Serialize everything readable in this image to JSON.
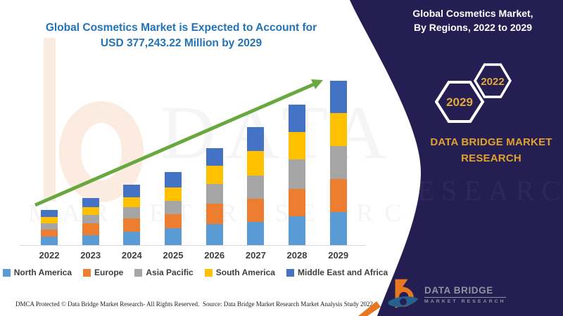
{
  "header": {
    "title_line1": "Global Cosmetics Market is Expected to Account for",
    "title_line2": "USD 377,243.22 Million by 2029",
    "title_color": "#2273B8"
  },
  "chart_data": {
    "type": "bar",
    "stacked": true,
    "title": "Global Cosmetics Market is Expected to Account for USD 377,243.22 Million by 2029",
    "categories": [
      "2022",
      "2023",
      "2024",
      "2025",
      "2026",
      "2027",
      "2028",
      "2029"
    ],
    "series": [
      {
        "name": "North America",
        "color": "#5B9BD5",
        "values": [
          12,
          14,
          19,
          24,
          30,
          33,
          41,
          47
        ]
      },
      {
        "name": "Europe",
        "color": "#ED7D31",
        "values": [
          10,
          17,
          19,
          20,
          29,
          33,
          39,
          47
        ]
      },
      {
        "name": "Asia Pacific",
        "color": "#A5A5A5",
        "values": [
          9,
          12,
          16,
          19,
          28,
          33,
          42,
          47
        ]
      },
      {
        "name": "South America",
        "color": "#FFC000",
        "values": [
          9,
          11,
          14,
          19,
          26,
          35,
          39,
          47
        ]
      },
      {
        "name": "Middle East and Africa",
        "color": "#4472C4",
        "values": [
          10,
          13,
          18,
          22,
          25,
          34,
          39,
          46
        ]
      }
    ],
    "stack_order_bottom_to_top": [
      "North America",
      "Europe",
      "Asia Pacific",
      "South America",
      "Middle East and Africa"
    ],
    "bar_totals": [
      50,
      67,
      86,
      104,
      138,
      168,
      200,
      234
    ],
    "units": "relative bar height (no y-axis scale shown on chart)",
    "yaxis_labeled": false,
    "gridlines": false,
    "legend_position": "bottom",
    "trend_arrow": {
      "present": true,
      "color": "#69A83F",
      "direction": "up-right"
    }
  },
  "footer": {
    "left": "DMCA Protected © Data Bridge Market Research- All Rights Reserved.",
    "source": "Source: Data Bridge Market Research Market Analysis Study 2022"
  },
  "panel": {
    "bg_color": "#251E52",
    "gold_color": "#DFA32B",
    "title_line1": "Global Cosmetics Market,",
    "title_line2": "By Regions, 2022 to 2029",
    "hexagons": {
      "large_year": "2029",
      "small_year": "2022"
    },
    "brand_line1": "DATA BRIDGE MARKET",
    "brand_line2": "RESEARCH",
    "logo": {
      "title": "DATA BRIDGE",
      "subtitle": "MARKET RESEARCH"
    }
  },
  "watermarks": {
    "big_letters": "DATA B",
    "row_letters": "MARKET RESEARCH",
    "panel_letters": "RESEARCH"
  }
}
